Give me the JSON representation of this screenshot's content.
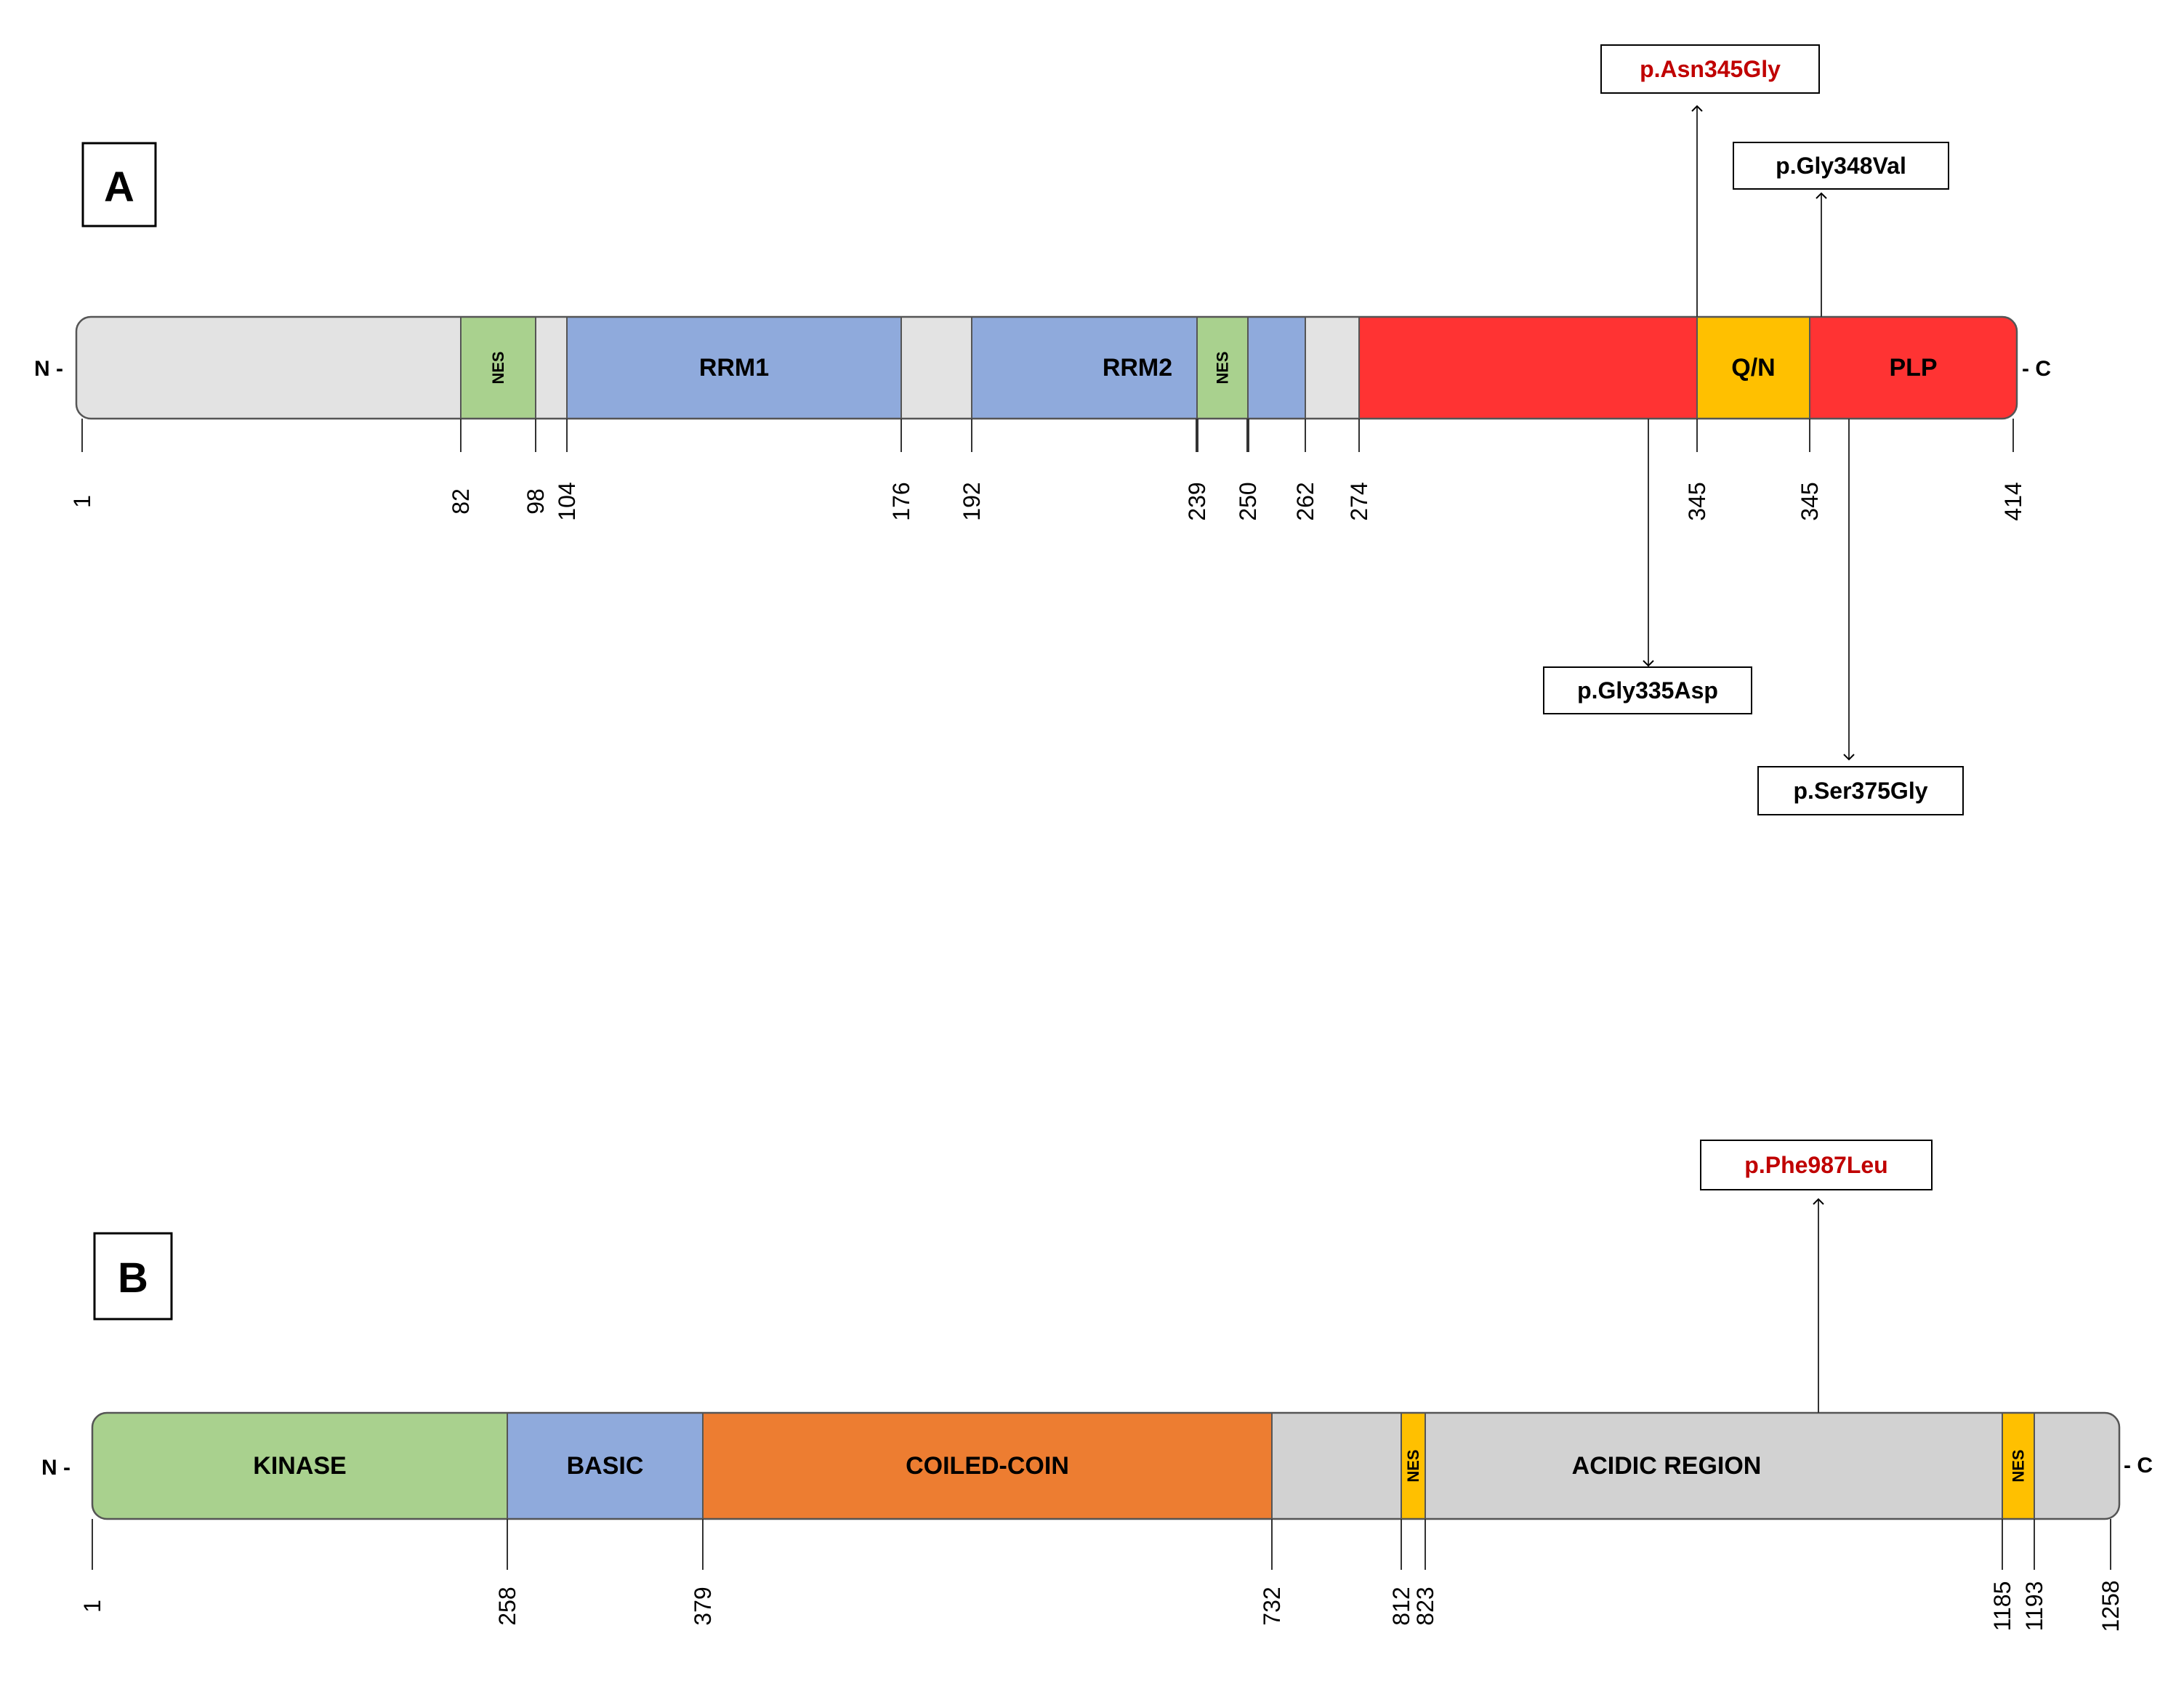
{
  "colors": {
    "gray": "#E3E3E3",
    "gray_b": "#D2D2D2",
    "green": "#A9D18E",
    "blue": "#8FAADC",
    "red": "#FF3333",
    "yellow": "#FFC000",
    "orange": "#ED7D31",
    "highlight_text": "#C00000",
    "normal_text": "#000000"
  },
  "panel_a": {
    "letter": "A",
    "n_label": "N -",
    "c_label": "- C",
    "segments": [
      {
        "label": "",
        "color": "gray"
      },
      {
        "label": "NES",
        "color": "green",
        "rotated": true
      },
      {
        "label": "",
        "color": "gray"
      },
      {
        "label": "RRM1",
        "color": "blue"
      },
      {
        "label": "",
        "color": "gray"
      },
      {
        "label": "RRM2",
        "color": "blue"
      },
      {
        "label": "NES",
        "color": "green",
        "rotated": true
      },
      {
        "label": "",
        "color": "blue"
      },
      {
        "label": "",
        "color": "gray"
      },
      {
        "label": "",
        "color": "red"
      },
      {
        "label": "Q/N",
        "color": "yellow"
      },
      {
        "label": "PLP",
        "color": "red"
      }
    ],
    "ticks": [
      "1",
      "82",
      "98",
      "104",
      "176",
      "192",
      "239",
      "250",
      "262",
      "274",
      "345",
      "345",
      "414"
    ],
    "mutations": [
      {
        "label": "p.Asn345Gly",
        "highlight": true,
        "direction": "up"
      },
      {
        "label": "p.Gly348Val",
        "highlight": false,
        "direction": "up"
      },
      {
        "label": "p.Gly335Asp",
        "highlight": false,
        "direction": "down"
      },
      {
        "label": "p.Ser375Gly",
        "highlight": false,
        "direction": "down"
      }
    ]
  },
  "panel_b": {
    "letter": "B",
    "n_label": "N -",
    "c_label": "- C",
    "segments": [
      {
        "label": "KINASE",
        "color": "green"
      },
      {
        "label": "BASIC",
        "color": "blue"
      },
      {
        "label": "COILED-COIN",
        "color": "orange"
      },
      {
        "label": "ACIDIC REGION",
        "color": "gray_b"
      },
      {
        "label": "NES",
        "color": "yellow",
        "rotated": true
      },
      {
        "label": "NES",
        "color": "yellow",
        "rotated": true
      }
    ],
    "ticks": [
      "1",
      "258",
      "379",
      "732",
      "812",
      "823",
      "1185",
      "1193",
      "1258"
    ],
    "mutations": [
      {
        "label": "p.Phe987Leu",
        "highlight": true,
        "direction": "up"
      }
    ]
  }
}
